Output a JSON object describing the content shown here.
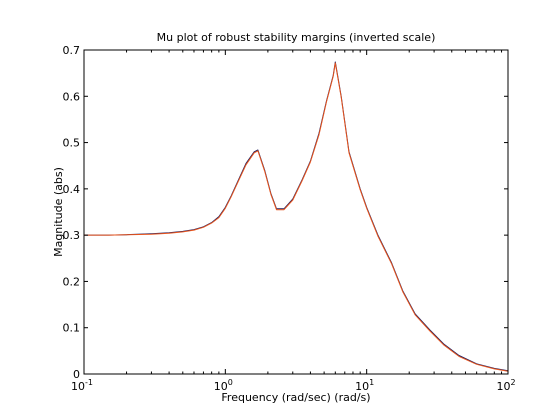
{
  "chart_data": {
    "type": "line",
    "title": "Mu plot of robust stability margins (inverted scale)",
    "xlabel": "Frequency (rad/sec)  (rad/s)",
    "ylabel": "Magnitude (abs)",
    "xscale": "log",
    "xlim": [
      0.1,
      100
    ],
    "ylim": [
      0,
      0.7
    ],
    "grid": false,
    "x_ticks": [
      {
        "value": 0.1,
        "base": "10",
        "exp": "-1"
      },
      {
        "value": 1,
        "base": "10",
        "exp": "0"
      },
      {
        "value": 10,
        "base": "10",
        "exp": "1"
      },
      {
        "value": 100,
        "base": "10",
        "exp": "2"
      }
    ],
    "y_ticks": [
      {
        "value": 0,
        "label": "0"
      },
      {
        "value": 0.1,
        "label": "0.1"
      },
      {
        "value": 0.2,
        "label": "0.2"
      },
      {
        "value": 0.3,
        "label": "0.3"
      },
      {
        "value": 0.4,
        "label": "0.4"
      },
      {
        "value": 0.5,
        "label": "0.5"
      },
      {
        "value": 0.6,
        "label": "0.6"
      },
      {
        "value": 0.7,
        "label": "0.7"
      }
    ],
    "series": [
      {
        "color": "#1f1f5f",
        "x": [
          0.1,
          0.15,
          0.2,
          0.3,
          0.4,
          0.5,
          0.6,
          0.7,
          0.8,
          0.9,
          1.0,
          1.1,
          1.2,
          1.4,
          1.6,
          1.7,
          1.9,
          2.1,
          2.3,
          2.6,
          3.0,
          3.5,
          4.0,
          4.6,
          5.2,
          5.8,
          6.0,
          6.6,
          7.5,
          9.0,
          10.0,
          12.0,
          15.0,
          18.0,
          22.0,
          28.0,
          35.0,
          45.0,
          60.0,
          80.0,
          100.0
        ],
        "y": [
          0.3,
          0.3,
          0.301,
          0.303,
          0.305,
          0.308,
          0.312,
          0.318,
          0.327,
          0.34,
          0.36,
          0.385,
          0.41,
          0.455,
          0.48,
          0.484,
          0.44,
          0.39,
          0.357,
          0.357,
          0.378,
          0.42,
          0.46,
          0.52,
          0.59,
          0.645,
          0.674,
          0.6,
          0.48,
          0.4,
          0.36,
          0.3,
          0.24,
          0.18,
          0.13,
          0.095,
          0.065,
          0.04,
          0.022,
          0.012,
          0.007
        ]
      },
      {
        "color": "#e8541c",
        "x": [
          0.1,
          0.15,
          0.2,
          0.3,
          0.4,
          0.5,
          0.6,
          0.7,
          0.8,
          0.9,
          1.0,
          1.1,
          1.2,
          1.4,
          1.6,
          1.7,
          1.9,
          2.1,
          2.3,
          2.6,
          3.0,
          3.5,
          4.0,
          4.6,
          5.2,
          5.8,
          6.0,
          6.6,
          7.5,
          9.0,
          10.0,
          12.0,
          15.0,
          18.0,
          22.0,
          28.0,
          35.0,
          45.0,
          60.0,
          80.0,
          100.0
        ],
        "y": [
          0.3,
          0.3,
          0.301,
          0.302,
          0.304,
          0.307,
          0.311,
          0.317,
          0.326,
          0.338,
          0.358,
          0.383,
          0.408,
          0.452,
          0.478,
          0.482,
          0.438,
          0.388,
          0.355,
          0.355,
          0.376,
          0.418,
          0.458,
          0.517,
          0.588,
          0.643,
          0.672,
          0.598,
          0.478,
          0.398,
          0.358,
          0.298,
          0.238,
          0.178,
          0.128,
          0.093,
          0.063,
          0.038,
          0.021,
          0.011,
          0.006
        ]
      }
    ]
  }
}
